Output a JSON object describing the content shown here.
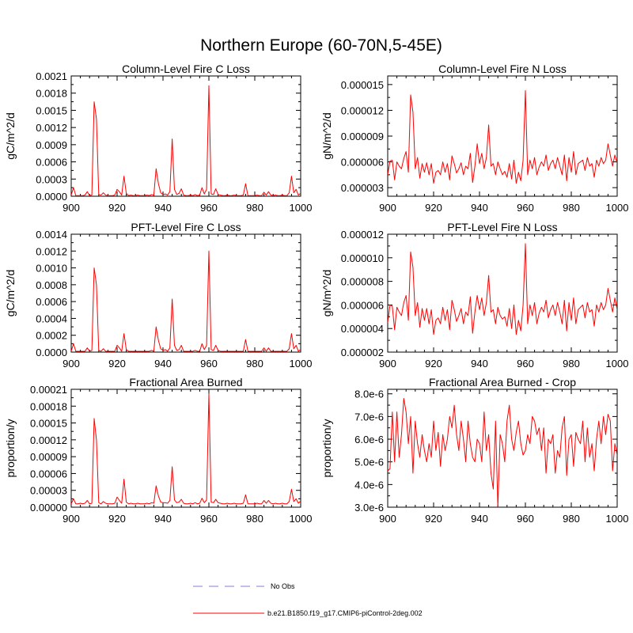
{
  "page_title": "Northern Europe (60-70N,5-45E)",
  "colors": {
    "model": "#ff0000",
    "obs": "#9999dd",
    "axis": "#000000"
  },
  "legend": [
    {
      "label": "No Obs",
      "style": "dashed",
      "color": "#9999dd"
    },
    {
      "label": "b.e21.B1850.f19_g17.CMIP6-piControl-2deg.002",
      "style": "solid",
      "color": "#ff0000"
    }
  ],
  "chart_data": [
    {
      "type": "line",
      "title": "Column-Level Fire C Loss",
      "ylabel": "gC/m^2/d",
      "xlim": [
        900,
        1000
      ],
      "ylim": [
        0,
        0.0021
      ],
      "xticks": [
        900,
        920,
        940,
        960,
        980,
        1000
      ],
      "yticks": [
        0,
        0.0003,
        0.0006,
        0.0009,
        0.0012,
        0.0015,
        0.0018,
        0.0021
      ],
      "ytick_labels": [
        "0.0000",
        "0.0003",
        "0.0006",
        "0.0009",
        "0.0012",
        "0.0015",
        "0.0018",
        "0.0021"
      ],
      "x_start": 900,
      "series": [
        {
          "name": "b.e21.B1850.f19_g17.CMIP6-piControl-2deg.002",
          "values": [
            2e-05,
            0.00015,
            1e-05,
            1e-05,
            1e-05,
            1e-05,
            2e-05,
            8e-05,
            1e-05,
            2e-05,
            0.00165,
            0.00135,
            3e-05,
            2e-05,
            6e-05,
            2e-05,
            1e-05,
            1e-05,
            1e-05,
            2e-05,
            0.00012,
            8e-05,
            2e-05,
            0.00035,
            5e-05,
            1e-05,
            2e-05,
            1e-05,
            1e-05,
            2e-05,
            1e-05,
            1e-05,
            1e-05,
            2e-05,
            1e-05,
            3e-05,
            2e-05,
            0.00048,
            0.00022,
            6e-05,
            3e-05,
            4e-05,
            2e-05,
            8e-05,
            0.001,
            0.00012,
            3e-05,
            5e-05,
            0.00013,
            2e-05,
            1e-05,
            1e-05,
            2e-05,
            1e-05,
            3e-05,
            1e-05,
            2e-05,
            0.00015,
            4e-05,
            0.00012,
            0.00193,
            4e-05,
            3e-05,
            0.00013,
            3e-05,
            2e-05,
            1e-05,
            1e-05,
            2e-05,
            1e-05,
            1e-05,
            2e-05,
            1e-05,
            1e-05,
            1e-05,
            2e-05,
            0.00022,
            1e-05,
            1e-05,
            1e-05,
            1e-05,
            2e-05,
            1e-05,
            1e-05,
            7e-05,
            2e-05,
            8e-05,
            2e-05,
            1e-05,
            2e-05,
            1e-05,
            1e-05,
            2e-05,
            1e-05,
            1e-05,
            6e-05,
            0.00035,
            6e-05,
            0.00012,
            2e-05,
            5e-05
          ]
        }
      ]
    },
    {
      "type": "line",
      "title": "Column-Level Fire N Loss",
      "ylabel": "gN/m^2/d",
      "xlim": [
        900,
        1000
      ],
      "ylim": [
        2e-06,
        1.6e-05
      ],
      "xticks": [
        900,
        920,
        940,
        960,
        980,
        1000
      ],
      "yticks": [
        3e-06,
        6e-06,
        9e-06,
        1.2e-05,
        1.5e-05
      ],
      "ytick_labels": [
        "0.000003",
        "0.000006",
        "0.000009",
        "0.000012",
        "0.000015"
      ],
      "x_start": 900,
      "series": [
        {
          "name": "b.e21.B1850.f19_g17.CMIP6-piControl-2deg.002",
          "values": [
            4.5e-06,
            6.1e-06,
            6.2e-06,
            3.9e-06,
            6e-06,
            5.5e-06,
            5.2e-06,
            6.4e-06,
            7.2e-06,
            4.8e-06,
            1.38e-05,
            1.18e-05,
            5.2e-06,
            6.5e-06,
            4.1e-06,
            5.8e-06,
            4.8e-06,
            5.9e-06,
            4.5e-06,
            5.8e-06,
            3.5e-06,
            4.8e-06,
            5e-06,
            4.5e-06,
            6e-06,
            4.8e-06,
            5.8e-06,
            3.9e-06,
            6.7e-06,
            5.8e-06,
            4.7e-06,
            5.2e-06,
            5.9e-06,
            4.5e-06,
            5.5e-06,
            5.2e-06,
            7e-06,
            3.6e-06,
            5.5e-06,
            8.1e-06,
            5.8e-06,
            7e-06,
            5.2e-06,
            6.5e-06,
            1.03e-05,
            5.5e-06,
            5.8e-06,
            4.5e-06,
            6e-06,
            5.2e-06,
            4.5e-06,
            4.9e-06,
            4.2e-06,
            5.8e-06,
            4e-06,
            6.2e-06,
            3.5e-06,
            4.8e-06,
            3.8e-06,
            6.2e-06,
            1.43e-05,
            4.5e-06,
            6.2e-06,
            5.2e-06,
            6.5e-06,
            4.5e-06,
            5.4e-06,
            6e-06,
            5.5e-06,
            6.8e-06,
            5e-06,
            5.8e-06,
            6.2e-06,
            5.2e-06,
            6.5e-06,
            5.5e-06,
            4.5e-06,
            6.8e-06,
            3.8e-06,
            6.5e-06,
            4.8e-06,
            7.2e-06,
            4.5e-06,
            5.8e-06,
            6e-06,
            6.2e-06,
            5e-06,
            6.5e-06,
            5.5e-06,
            5.8e-06,
            4.2e-06,
            6.2e-06,
            5.5e-06,
            6.5e-06,
            5.8e-06,
            6.2e-06,
            8.1e-06,
            6.8e-06,
            5.5e-06,
            6.8e-06,
            5.8e-06
          ]
        }
      ]
    },
    {
      "type": "line",
      "title": "PFT-Level Fire C Loss",
      "ylabel": "gC/m^2/d",
      "xlim": [
        900,
        1000
      ],
      "ylim": [
        0,
        0.0014
      ],
      "xticks": [
        900,
        920,
        940,
        960,
        980,
        1000
      ],
      "yticks": [
        0,
        0.0002,
        0.0004,
        0.0006,
        0.0008,
        0.001,
        0.0012,
        0.0014
      ],
      "ytick_labels": [
        "0.0000",
        "0.0002",
        "0.0004",
        "0.0006",
        "0.0008",
        "0.0010",
        "0.0012",
        "0.0014"
      ],
      "x_start": 900,
      "series": [
        {
          "name": "b.e21.B1850.f19_g17.CMIP6-piControl-2deg.002",
          "values": [
            1e-05,
            0.0001,
            1e-05,
            1e-05,
            1e-05,
            1e-05,
            1e-05,
            5e-05,
            1e-05,
            2e-05,
            0.001,
            0.0008,
            2e-05,
            1e-05,
            4e-05,
            1e-05,
            1e-05,
            1e-05,
            1e-05,
            1e-05,
            8e-05,
            5e-05,
            1e-05,
            0.00022,
            3e-05,
            1e-05,
            1e-05,
            1e-05,
            1e-05,
            1e-05,
            1e-05,
            1e-05,
            1e-05,
            1e-05,
            1e-05,
            2e-05,
            1e-05,
            0.0003,
            0.00014,
            4e-05,
            2e-05,
            3e-05,
            1e-05,
            5e-05,
            0.00063,
            8e-05,
            2e-05,
            3e-05,
            8e-05,
            1e-05,
            1e-05,
            1e-05,
            1e-05,
            1e-05,
            2e-05,
            1e-05,
            1e-05,
            0.0001,
            3e-05,
            8e-05,
            0.0012,
            3e-05,
            2e-05,
            8e-05,
            2e-05,
            1e-05,
            1e-05,
            1e-05,
            1e-05,
            1e-05,
            1e-05,
            1e-05,
            1e-05,
            1e-05,
            1e-05,
            1e-05,
            0.00015,
            1e-05,
            1e-05,
            1e-05,
            1e-05,
            1e-05,
            1e-05,
            1e-05,
            5e-05,
            1e-05,
            5e-05,
            1e-05,
            1e-05,
            1e-05,
            1e-05,
            1e-05,
            1e-05,
            1e-05,
            1e-05,
            4e-05,
            0.00022,
            4e-05,
            8e-05,
            1e-05,
            3e-05
          ]
        }
      ]
    },
    {
      "type": "line",
      "title": "PFT-Level Fire N Loss",
      "ylabel": "gN/m^2/d",
      "xlim": [
        900,
        1000
      ],
      "ylim": [
        2e-06,
        1.2e-05
      ],
      "xticks": [
        900,
        920,
        940,
        960,
        980,
        1000
      ],
      "yticks": [
        2e-06,
        4e-06,
        6e-06,
        8e-06,
        1e-05,
        1.2e-05
      ],
      "ytick_labels": [
        "0.000002",
        "0.000004",
        "0.000006",
        "0.000008",
        "0.000010",
        "0.000012"
      ],
      "x_start": 900,
      "series": [
        {
          "name": "b.e21.B1850.f19_g17.CMIP6-piControl-2deg.002",
          "values": [
            4.5e-06,
            6e-06,
            5.9e-06,
            3.9e-06,
            5.8e-06,
            5.4e-06,
            5.1e-06,
            6.2e-06,
            6.8e-06,
            4.7e-06,
            1.05e-05,
            9.2e-06,
            5.1e-06,
            6.2e-06,
            4.1e-06,
            5.7e-06,
            4.7e-06,
            5.7e-06,
            4.4e-06,
            5.6e-06,
            3.5e-06,
            4.7e-06,
            4.9e-06,
            4.4e-06,
            5.8e-06,
            4.7e-06,
            5.6e-06,
            3.9e-06,
            6.4e-06,
            5.6e-06,
            4.6e-06,
            5.1e-06,
            5.7e-06,
            4.4e-06,
            5.4e-06,
            5.1e-06,
            6.7e-06,
            3.6e-06,
            5.4e-06,
            6.8e-06,
            5.6e-06,
            6.6e-06,
            5.1e-06,
            6.2e-06,
            8.5e-06,
            5.4e-06,
            5.6e-06,
            4.4e-06,
            5.8e-06,
            5.1e-06,
            4.8e-06,
            5e-06,
            4.2e-06,
            5.7e-06,
            4e-06,
            6e-06,
            3.5e-06,
            4.7e-06,
            3.8e-06,
            6e-06,
            1.12e-05,
            4.4e-06,
            6e-06,
            5.1e-06,
            6.2e-06,
            4.4e-06,
            5.3e-06,
            5.8e-06,
            5.4e-06,
            6.4e-06,
            4.9e-06,
            5.6e-06,
            6e-06,
            5.1e-06,
            6.2e-06,
            5.4e-06,
            4.4e-06,
            6.4e-06,
            3.8e-06,
            6.2e-06,
            4.7e-06,
            6.6e-06,
            4.4e-06,
            5.6e-06,
            5.8e-06,
            6e-06,
            4.9e-06,
            6.2e-06,
            5.4e-06,
            5.6e-06,
            4.2e-06,
            6e-06,
            5.4e-06,
            6.2e-06,
            5.6e-06,
            6e-06,
            7.4e-06,
            6.4e-06,
            5.4e-06,
            6.6e-06,
            5.6e-06
          ]
        }
      ]
    },
    {
      "type": "line",
      "title": "Fractional Area Burned",
      "ylabel": "proportion/y",
      "xlim": [
        900,
        1000
      ],
      "ylim": [
        0,
        0.00021
      ],
      "xticks": [
        900,
        920,
        940,
        960,
        980,
        1000
      ],
      "yticks": [
        0,
        3e-05,
        6e-05,
        9e-05,
        0.00012,
        0.00015,
        0.00018,
        0.00021
      ],
      "ytick_labels": [
        "0.00000",
        "0.00003",
        "0.00006",
        "0.00009",
        "0.00012",
        "0.00015",
        "0.00018",
        "0.00021"
      ],
      "x_start": 900,
      "series": [
        {
          "name": "b.e21.B1850.f19_g17.CMIP6-piControl-2deg.002",
          "values": [
            6e-06,
            1.5e-05,
            6e-06,
            6e-06,
            7e-06,
            6e-06,
            7e-06,
            1.2e-05,
            6e-06,
            7e-06,
            0.000158,
            0.00012,
            8e-06,
            6e-06,
            1e-05,
            7e-06,
            6e-06,
            6e-06,
            6e-06,
            7e-06,
            1.8e-05,
            1.2e-05,
            7e-06,
            5e-05,
            9e-06,
            6e-06,
            7e-06,
            6e-06,
            6e-06,
            7e-06,
            6e-06,
            6e-06,
            6e-06,
            7e-06,
            6e-06,
            8e-06,
            7e-06,
            3.8e-05,
            2e-05,
            9e-06,
            8e-06,
            8e-06,
            7e-06,
            1.2e-05,
            7.2e-05,
            1.3e-05,
            8e-06,
            9e-06,
            1.4e-05,
            7e-06,
            6e-06,
            6e-06,
            7e-06,
            6e-06,
            8e-06,
            6e-06,
            7e-06,
            1.6e-05,
            8e-06,
            1.3e-05,
            0.000202,
            9e-06,
            8e-06,
            1.4e-05,
            8e-06,
            7e-06,
            6e-06,
            6e-06,
            7e-06,
            6e-06,
            6e-06,
            7e-06,
            6e-06,
            6e-06,
            6e-06,
            7e-06,
            2.2e-05,
            6e-06,
            6e-06,
            6e-06,
            6e-06,
            7e-06,
            6e-06,
            6e-06,
            1.2e-05,
            7e-06,
            1.2e-05,
            7e-06,
            6e-06,
            7e-06,
            6e-06,
            6e-06,
            7e-06,
            6e-06,
            6e-06,
            1e-05,
            3.2e-05,
            1e-05,
            1.5e-05,
            7e-06,
            1.1e-05
          ]
        }
      ]
    },
    {
      "type": "line",
      "title": "Fractional Area Burned - Crop",
      "ylabel": "proportion/y",
      "xlim": [
        900,
        1000
      ],
      "ylim": [
        3e-06,
        8.2e-06
      ],
      "xticks": [
        900,
        920,
        940,
        960,
        980,
        1000
      ],
      "yticks": [
        3e-06,
        4e-06,
        5e-06,
        6e-06,
        7e-06,
        8e-06
      ],
      "ytick_labels": [
        "3.0e-6",
        "4.0e-6",
        "5.0e-6",
        "6.0e-6",
        "7.0e-6",
        "8.0e-6"
      ],
      "x_start": 900,
      "series": [
        {
          "name": "b.e21.B1850.f19_g17.CMIP6-piControl-2deg.002",
          "values": [
            4.6e-06,
            4.7e-06,
            7.2e-06,
            5e-06,
            7.2e-06,
            5.2e-06,
            6.2e-06,
            7.8e-06,
            7.2e-06,
            5.8e-06,
            7e-06,
            4.5e-06,
            6.8e-06,
            5.8e-06,
            5.2e-06,
            6.2e-06,
            5.5e-06,
            5e-06,
            5.8e-06,
            5.2e-06,
            6.8e-06,
            5.5e-06,
            6.3e-06,
            4.8e-06,
            6.2e-06,
            5.5e-06,
            6e-06,
            7e-06,
            6.5e-06,
            7.5e-06,
            6.2e-06,
            5.5e-06,
            6.8e-06,
            6e-06,
            5e-06,
            6.8e-06,
            5.8e-06,
            5.2e-06,
            5e-06,
            6e-06,
            5.8e-06,
            5e-06,
            7.2e-06,
            5.5e-06,
            6.2e-06,
            4.5e-06,
            3.8e-06,
            6.8e-06,
            3e-06,
            6.2e-06,
            5.8e-06,
            5e-06,
            6.8e-06,
            7.5e-06,
            6e-06,
            5.5e-06,
            6.3e-06,
            6.8e-06,
            5.8e-06,
            5.3e-06,
            5.5e-06,
            6.2e-06,
            5.8e-06,
            7e-06,
            6.8e-06,
            6.2e-06,
            6.5e-06,
            5.5e-06,
            6.5e-06,
            4.5e-06,
            6e-06,
            5.8e-06,
            6.2e-06,
            4.5e-06,
            5.5e-06,
            5.2e-06,
            6.5e-06,
            7e-06,
            4.4e-06,
            6e-06,
            6.2e-06,
            4.8e-06,
            6.3e-06,
            6e-06,
            5.8e-06,
            6.8e-06,
            5e-06,
            6.5e-06,
            5.2e-06,
            5.8e-06,
            4.6e-06,
            6e-06,
            6.8e-06,
            5.8e-06,
            7e-06,
            6.2e-06,
            7.1e-06,
            6.8e-06,
            4.6e-06,
            5.8e-06,
            5.3e-06
          ]
        }
      ]
    }
  ]
}
